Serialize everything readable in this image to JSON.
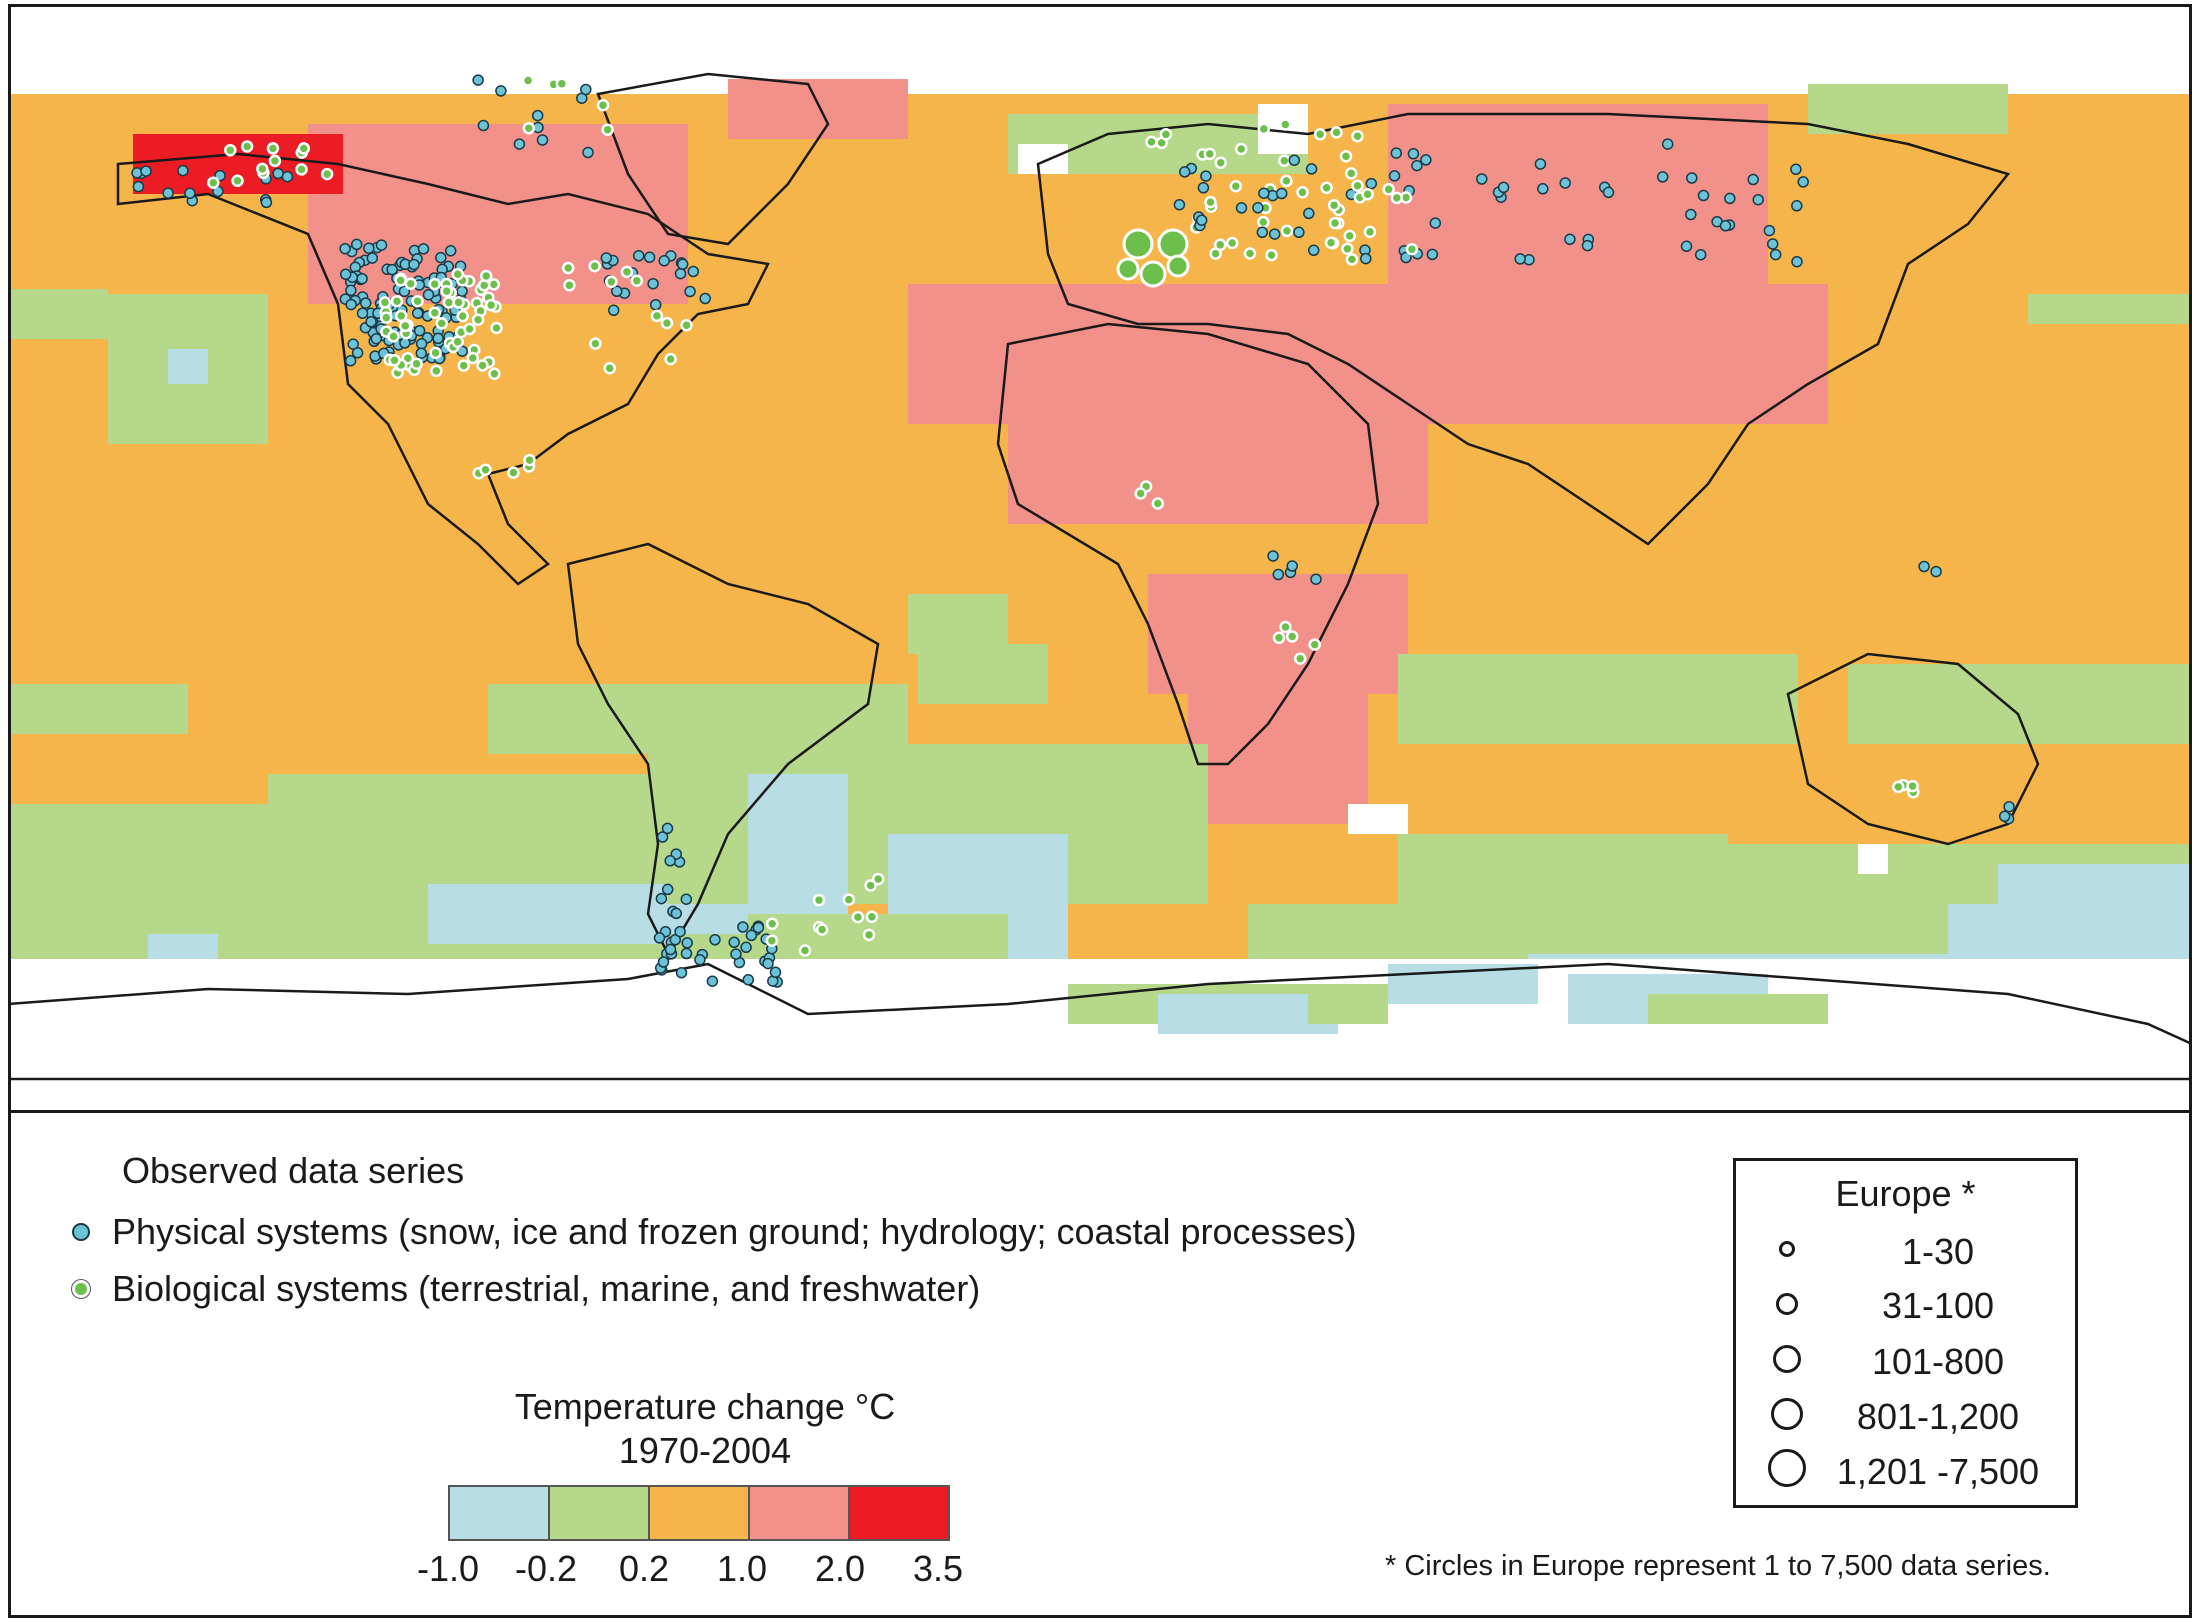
{
  "map": {
    "colors": {
      "ocean_background": "#f5b54a",
      "coastline": "#1a1a1a",
      "land_fill_none": "#ffffff"
    },
    "grid_regions": [
      {
        "label": "-1.0 to -0.2",
        "color": "#b8dde4"
      },
      {
        "label": "-0.2 to 0.2",
        "color": "#b5d88a"
      },
      {
        "label": "0.2 to 1.0",
        "color": "#f5b54a"
      },
      {
        "label": "1.0 to 2.0",
        "color": "#f2918a"
      },
      {
        "label": "2.0 to 3.5",
        "color": "#ec1c24"
      }
    ]
  },
  "legend": {
    "heading": "Observed data series",
    "physical_label": "Physical systems (snow, ice and frozen ground; hydrology; coastal processes)",
    "biological_label": "Biological systems (terrestrial, marine, and freshwater)",
    "physical_color": "#6cc3d7",
    "biological_color": "#6cbf4a"
  },
  "temperature_scale": {
    "title_line1": "Temperature change °C",
    "title_line2": "1970-2004",
    "ticks": [
      "-1.0",
      "-0.2",
      "0.2",
      "1.0",
      "2.0",
      "3.5"
    ],
    "colors": [
      "#b8dde4",
      "#b5d88a",
      "#f5b54a",
      "#f2918a",
      "#ec1c24"
    ]
  },
  "europe_legend": {
    "title": "Europe *",
    "sizes": [
      "1-30",
      "31-100",
      "101-800",
      "801-1,200",
      "1,201 -7,500"
    ]
  },
  "footnote": "* Circles in Europe represent 1 to 7,500 data series."
}
